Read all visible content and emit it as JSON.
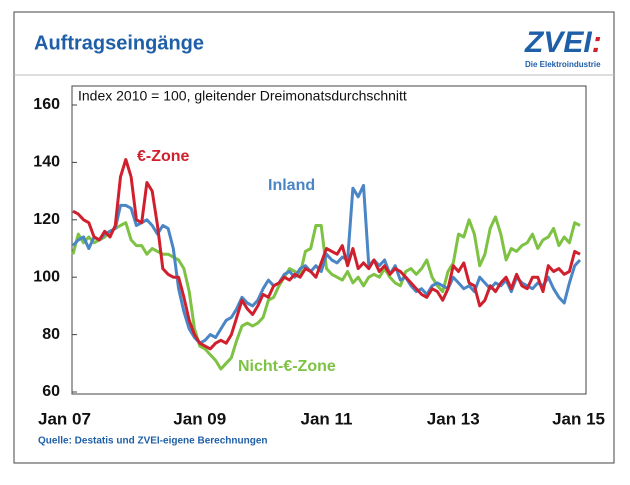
{
  "header": {
    "title": "Auftragseingänge",
    "logo": {
      "name": "ZVEI",
      "colon": ":",
      "tagline": "Die Elektroindustrie"
    }
  },
  "chart_data": {
    "type": "line",
    "subtitle": "Index 2010 = 100, gleitender Dreimonatsdurchschnitt",
    "source": "Quelle: Destatis und ZVEI-eigene Berechnungen",
    "categories": [
      "Jan 07",
      null,
      null,
      null,
      null,
      null,
      null,
      null,
      null,
      null,
      null,
      null,
      null,
      null,
      null,
      null,
      null,
      null,
      null,
      null,
      null,
      null,
      null,
      null,
      "Jan 09",
      null,
      null,
      null,
      null,
      null,
      null,
      null,
      null,
      null,
      null,
      null,
      null,
      null,
      null,
      null,
      null,
      null,
      null,
      null,
      null,
      null,
      null,
      null,
      "Jan 11",
      null,
      null,
      null,
      null,
      null,
      null,
      null,
      null,
      null,
      null,
      null,
      null,
      null,
      null,
      null,
      null,
      null,
      null,
      null,
      null,
      null,
      null,
      null,
      "Jan 13",
      null,
      null,
      null,
      null,
      null,
      null,
      null,
      null,
      null,
      null,
      null,
      null,
      null,
      null,
      null,
      null,
      null,
      null,
      null,
      null,
      null,
      null,
      null,
      "Jan 15"
    ],
    "ylim": [
      60,
      160
    ],
    "yticks": [
      60,
      80,
      100,
      120,
      140,
      160
    ],
    "series": [
      {
        "name": "Nicht-€-Zone",
        "color": "#7dc242",
        "values": [
          108,
          115,
          112,
          114,
          112,
          113,
          114,
          116,
          117,
          118,
          119,
          113,
          111,
          111,
          108,
          110,
          109,
          108,
          108,
          107,
          106,
          103,
          95,
          82,
          76,
          75,
          73,
          71,
          68,
          70,
          72,
          78,
          83,
          84,
          83,
          84,
          86,
          92,
          93,
          97,
          100,
          103,
          102,
          101,
          109,
          110,
          118,
          118,
          103,
          101,
          100,
          99,
          102,
          98,
          100,
          97,
          100,
          101,
          100,
          103,
          100,
          98,
          97,
          102,
          103,
          101,
          103,
          106,
          100,
          97,
          95,
          102,
          105,
          115,
          114,
          120,
          115,
          104,
          108,
          117,
          121,
          115,
          106,
          110,
          109,
          111,
          112,
          115,
          110,
          113,
          114,
          117,
          111,
          114,
          112,
          119,
          118
        ]
      },
      {
        "name": "Inland",
        "color": "#4a86c5",
        "values": [
          111,
          113,
          114,
          110,
          114,
          113,
          115,
          116,
          117,
          125,
          125,
          124,
          118,
          119,
          120,
          118,
          115,
          118,
          117,
          110,
          96,
          88,
          82,
          79,
          77,
          78,
          80,
          79,
          82,
          85,
          86,
          89,
          93,
          91,
          90,
          92,
          96,
          99,
          97,
          98,
          101,
          102,
          100,
          103,
          104,
          102,
          104,
          102,
          108,
          106,
          105,
          107,
          106,
          131,
          128,
          132,
          104,
          106,
          104,
          106,
          101,
          104,
          99,
          100,
          97,
          95,
          96,
          94,
          97,
          98,
          97,
          96,
          100,
          98,
          96,
          97,
          95,
          100,
          98,
          96,
          98,
          97,
          99,
          95,
          100,
          98,
          97,
          96,
          98,
          97,
          100,
          96,
          93,
          91,
          98,
          104,
          106
        ]
      },
      {
        "name": "€-Zone",
        "color": "#d0202e",
        "values": [
          123,
          122,
          120,
          119,
          114,
          113,
          116,
          114,
          118,
          135,
          141,
          135,
          120,
          119,
          133,
          130,
          118,
          103,
          101,
          100,
          100,
          93,
          85,
          80,
          77,
          76,
          75,
          77,
          78,
          77,
          80,
          86,
          92,
          89,
          87,
          90,
          94,
          93,
          97,
          98,
          100,
          99,
          101,
          100,
          103,
          102,
          100,
          105,
          110,
          109,
          108,
          111,
          104,
          110,
          103,
          105,
          103,
          106,
          102,
          104,
          101,
          103,
          102,
          100,
          98,
          96,
          94,
          93,
          96,
          95,
          92,
          96,
          104,
          102,
          105,
          98,
          97,
          90,
          92,
          97,
          95,
          98,
          100,
          96,
          101,
          97,
          96,
          100,
          100,
          95,
          104,
          102,
          103,
          101,
          102,
          109,
          108
        ]
      }
    ]
  }
}
